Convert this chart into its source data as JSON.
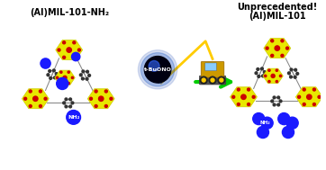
{
  "title_left": "(Al)MIL-101-NH₂",
  "title_right_line1": "Unprecedented!",
  "title_right_line2": "(Al)MIL-101",
  "reagent_label": "t-BuONO",
  "arrow_color": "#00cc00",
  "bg_color": "#ffffff",
  "yellow_color": "#e8e800",
  "yellow_dark": "#cccc00",
  "red_color": "#cc0000",
  "blue_color": "#1a1aff",
  "gray_color": "#555555",
  "dark_gray": "#333333",
  "bond_color": "#888888",
  "white": "#ffffff",
  "black": "#000000",
  "figsize": [
    3.62,
    1.89
  ],
  "dpi": 100
}
